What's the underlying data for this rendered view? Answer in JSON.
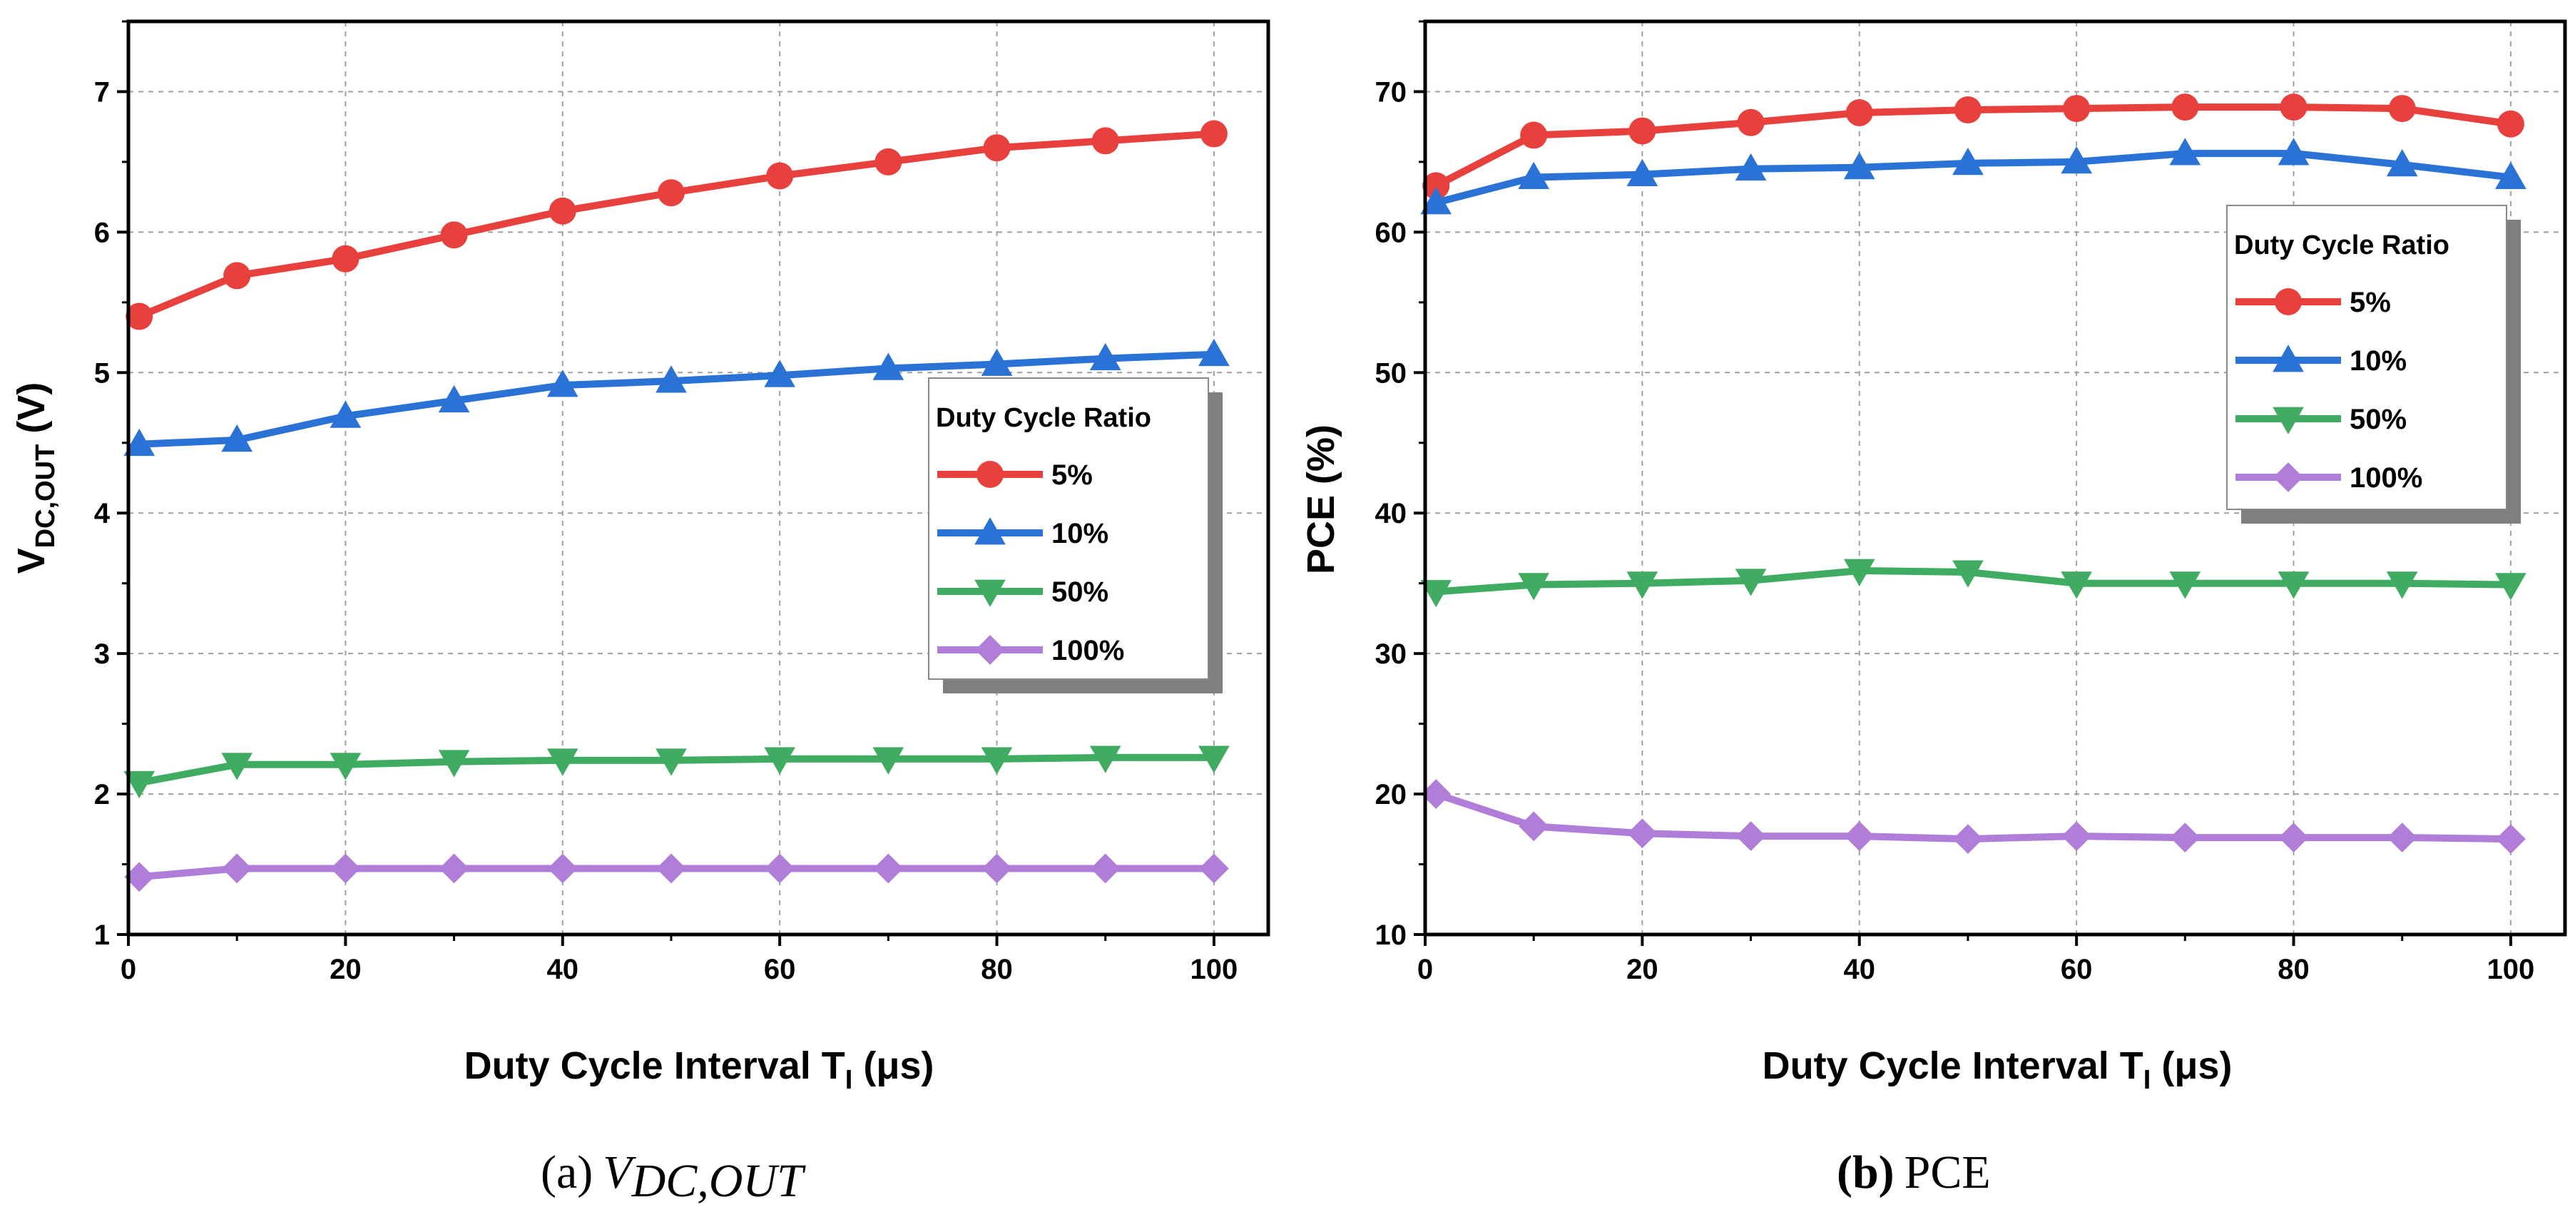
{
  "chart_data": [
    {
      "type": "line",
      "xlabel": "Duty Cycle Interval T",
      "xlabel_sub": "I",
      "xlabel_unit": " (μs)",
      "ylabel": "V",
      "ylabel_sub": "DC,OUT",
      "ylabel_unit": " (V)",
      "xlim": [
        0,
        105
      ],
      "ylim": [
        1,
        7.5
      ],
      "xticks": [
        0,
        20,
        40,
        60,
        80,
        100
      ],
      "yticks": [
        1,
        2,
        3,
        4,
        5,
        6,
        7
      ],
      "grid": true,
      "legend_title": "Duty Cycle Ratio",
      "legend_position": "right",
      "x": [
        1,
        10,
        20,
        30,
        40,
        50,
        60,
        70,
        80,
        90,
        100
      ],
      "series": [
        {
          "name": "5%",
          "color": "#e8403d",
          "marker": "circle",
          "values": [
            5.4,
            5.69,
            5.81,
            5.98,
            6.15,
            6.28,
            6.4,
            6.5,
            6.6,
            6.65,
            6.7
          ]
        },
        {
          "name": "10%",
          "color": "#2a72d6",
          "marker": "triangle-up",
          "values": [
            4.49,
            4.52,
            4.69,
            4.8,
            4.91,
            4.94,
            4.98,
            5.03,
            5.06,
            5.1,
            5.13
          ]
        },
        {
          "name": "50%",
          "color": "#3fac62",
          "marker": "triangle-down",
          "values": [
            2.08,
            2.21,
            2.21,
            2.23,
            2.24,
            2.24,
            2.25,
            2.25,
            2.25,
            2.26,
            2.26
          ]
        },
        {
          "name": "100%",
          "color": "#b07ed8",
          "marker": "diamond",
          "values": [
            1.41,
            1.47,
            1.47,
            1.47,
            1.47,
            1.47,
            1.47,
            1.47,
            1.47,
            1.47,
            1.47
          ]
        }
      ],
      "caption_tag": "(a)",
      "caption_main": "V",
      "caption_sub": "DC,OUT"
    },
    {
      "type": "line",
      "xlabel": "Duty Cycle Interval T",
      "xlabel_sub": "I",
      "xlabel_unit": " (μs)",
      "ylabel": "PCE (%)",
      "xlim": [
        0,
        105
      ],
      "ylim": [
        10,
        75
      ],
      "xticks": [
        0,
        20,
        40,
        60,
        80,
        100
      ],
      "yticks": [
        10,
        20,
        30,
        40,
        50,
        60,
        70
      ],
      "grid": true,
      "legend_title": "Duty Cycle Ratio",
      "legend_position": "top-right",
      "x": [
        1,
        10,
        20,
        30,
        40,
        50,
        60,
        70,
        80,
        90,
        100
      ],
      "series": [
        {
          "name": "5%",
          "color": "#e8403d",
          "marker": "circle",
          "values": [
            63.3,
            66.9,
            67.2,
            67.8,
            68.5,
            68.7,
            68.8,
            68.9,
            68.9,
            68.8,
            67.7
          ]
        },
        {
          "name": "10%",
          "color": "#2a72d6",
          "marker": "triangle-up",
          "values": [
            62.1,
            63.9,
            64.1,
            64.5,
            64.6,
            64.9,
            65.0,
            65.6,
            65.6,
            64.8,
            63.9
          ]
        },
        {
          "name": "50%",
          "color": "#3fac62",
          "marker": "triangle-down",
          "values": [
            34.4,
            34.9,
            35.0,
            35.2,
            35.9,
            35.8,
            35.0,
            35.0,
            35.0,
            35.0,
            34.9
          ]
        },
        {
          "name": "100%",
          "color": "#b07ed8",
          "marker": "diamond",
          "values": [
            20.0,
            17.7,
            17.2,
            17.0,
            17.0,
            16.8,
            17.0,
            16.9,
            16.9,
            16.9,
            16.8
          ]
        }
      ],
      "caption_tag": "(b)",
      "caption_main": "PCE"
    }
  ]
}
